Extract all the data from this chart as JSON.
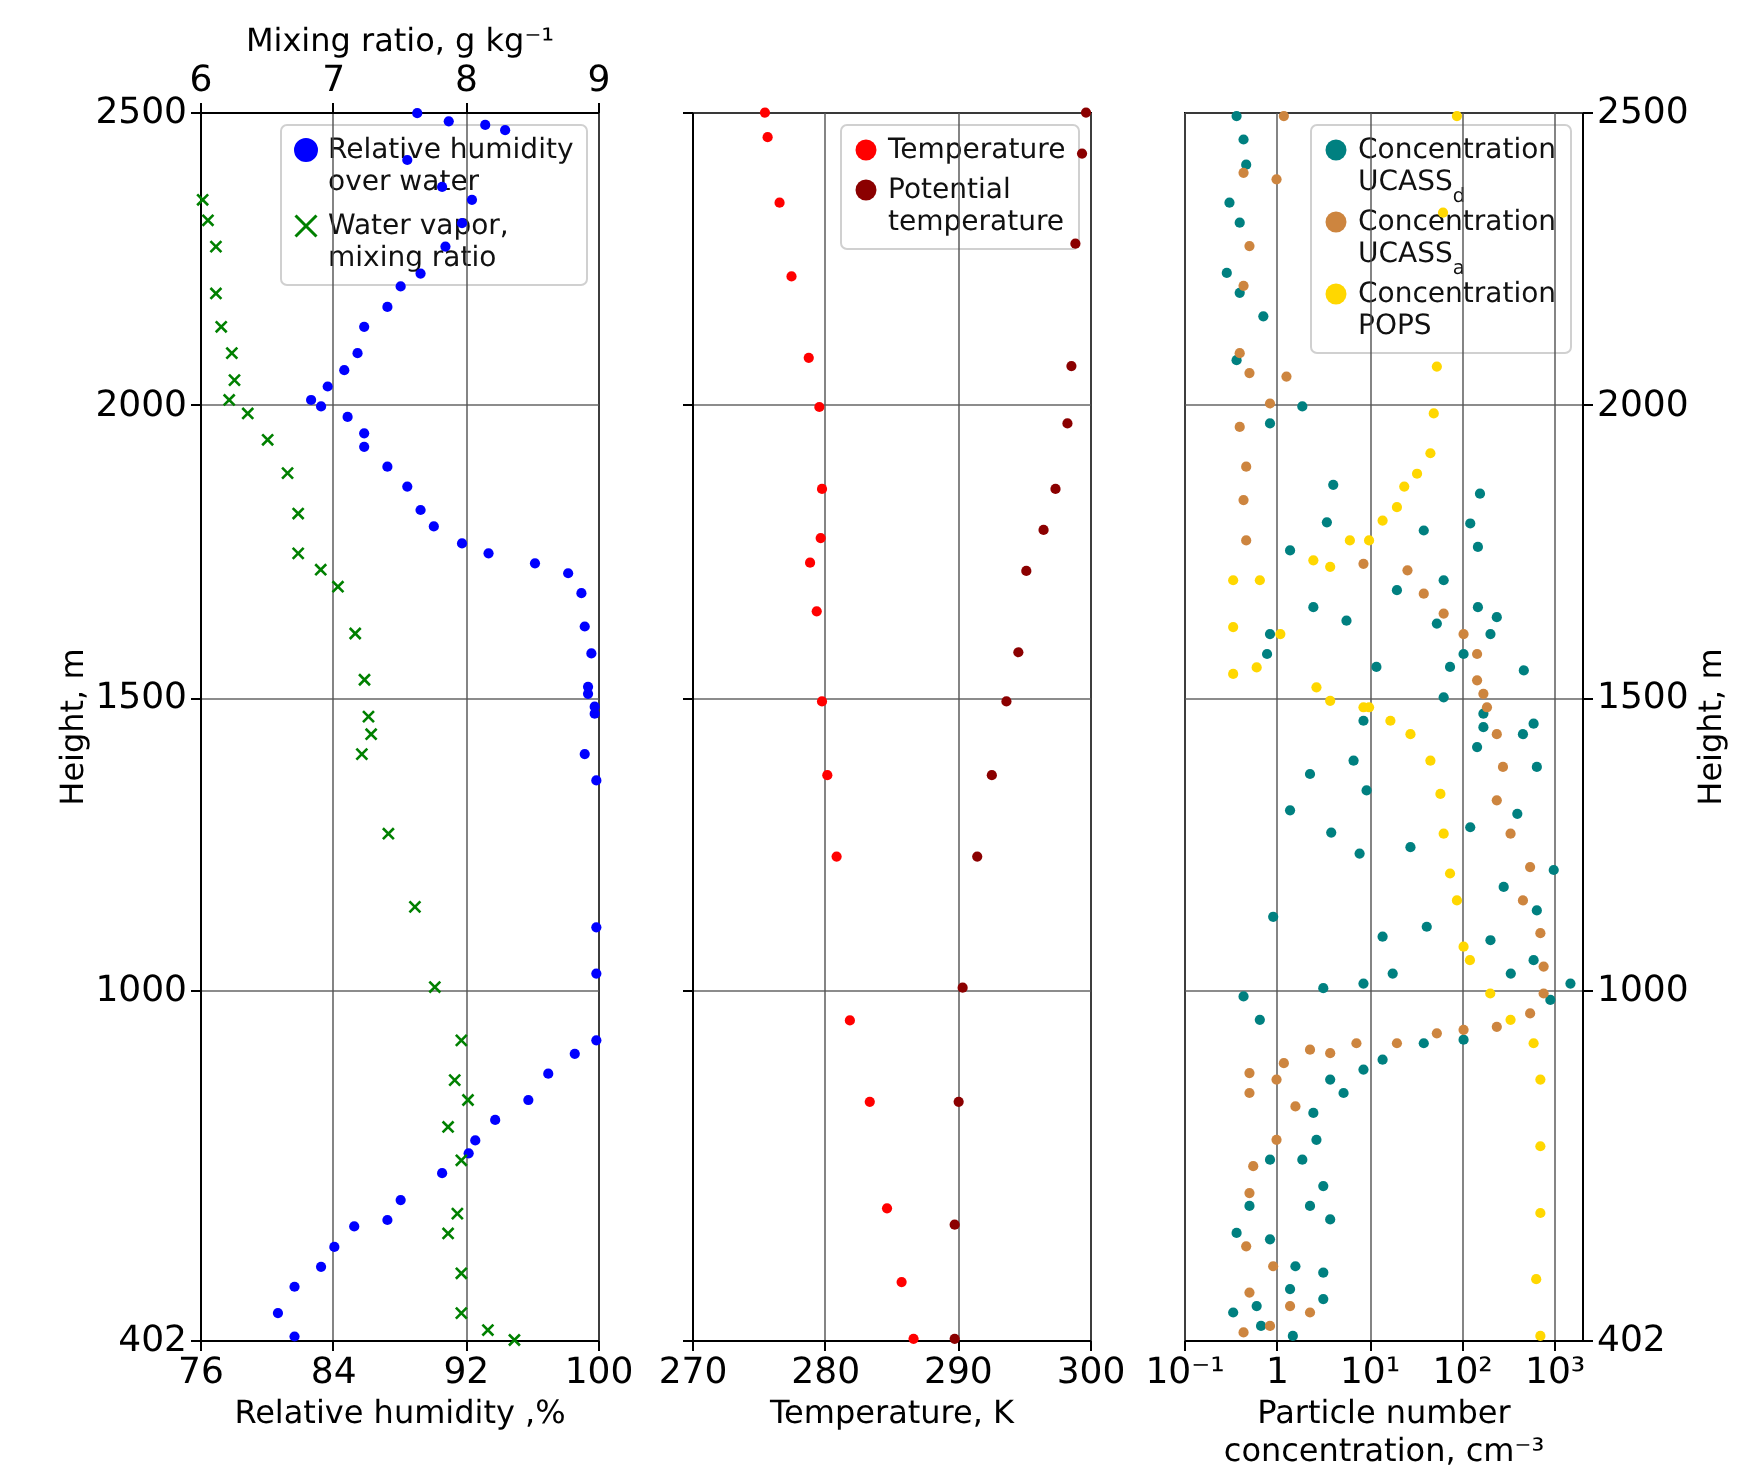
{
  "chart_data": [
    {
      "type": "scatter",
      "xlabel": "Relative humidity ,%",
      "ylabel": "Height, m",
      "x2label": "Mixing ratio, g kg⁻¹",
      "xlim": [
        76,
        100
      ],
      "xticks": [
        76,
        84,
        92,
        100
      ],
      "x2lim": [
        6,
        9
      ],
      "x2ticks": [
        6,
        7,
        8,
        9
      ],
      "ylim": [
        402,
        2500
      ],
      "yticks": [
        402,
        1000,
        1500,
        2000,
        2500
      ],
      "grid": true,
      "legend": "top right",
      "series": [
        {
          "name": "Relative humidity over water",
          "color": "#0000ff",
          "marker": "circle",
          "x": [
            94.4,
            93.2,
            91.0,
            89.1,
            88.5,
            90.6,
            92.4,
            91.8,
            90.8,
            89.3,
            88.1,
            87.3,
            85.9,
            85.5,
            84.7,
            83.7,
            82.7,
            83.3,
            84.9,
            85.9,
            85.9,
            87.3,
            88.5,
            89.3,
            90.1,
            91.8,
            93.4,
            96.2,
            98.2,
            99.0,
            99.2,
            99.6,
            99.4,
            99.8,
            99.4,
            99.8,
            99.2,
            99.9,
            99.9,
            99.9,
            99.9,
            98.6,
            97.0,
            95.8,
            93.8,
            92.6,
            92.2,
            90.6,
            88.1,
            87.3,
            85.3,
            84.1,
            83.3,
            81.7,
            80.7,
            81.7
          ],
          "values": [
            2469,
            2478,
            2484,
            2498,
            2418,
            2372,
            2350,
            2310,
            2270,
            2224,
            2202,
            2167,
            2133,
            2088,
            2059,
            2031,
            2008,
            1997,
            1979,
            1951,
            1928,
            1894,
            1860,
            1820,
            1792,
            1763,
            1746,
            1729,
            1712,
            1678,
            1621,
            1575,
            1518,
            1484,
            1506,
            1472,
            1403,
            1358,
            1107,
            1028,
            914,
            891,
            857,
            812,
            778,
            743,
            721,
            687,
            641,
            607,
            596,
            561,
            527,
            493,
            448,
            408
          ]
        },
        {
          "name": "Water vapor, mixing ratio",
          "color": "#008000",
          "marker": "cross",
          "axis": "x2",
          "x": [
            6.02,
            6.06,
            6.12,
            6.12,
            6.16,
            6.24,
            6.26,
            6.22,
            6.36,
            6.51,
            6.66,
            6.74,
            6.74,
            6.91,
            7.04,
            7.17,
            7.24,
            7.27,
            7.29,
            7.22,
            7.42,
            7.62,
            7.77,
            7.97,
            7.92,
            8.02,
            7.87,
            7.97,
            7.94,
            7.87,
            7.97,
            7.97,
            8.17,
            8.37
          ],
          "values": [
            2350,
            2315,
            2270,
            2190,
            2133,
            2088,
            2042,
            2008,
            1985,
            1940,
            1883,
            1814,
            1746,
            1718,
            1689,
            1609,
            1530,
            1467,
            1437,
            1403,
            1267,
            1142,
            1005,
            914,
            846,
            812,
            766,
            709,
            618,
            584,
            516,
            448,
            419,
            402
          ]
        }
      ]
    },
    {
      "type": "scatter",
      "xlabel": "Temperature, K",
      "marker": "circle",
      "xlim": [
        270,
        300
      ],
      "xticks": [
        270,
        280,
        290,
        300
      ],
      "ylim": [
        402,
        2500
      ],
      "yticks": [
        402,
        1000,
        1500,
        2000,
        2500
      ],
      "tick_labels": "x",
      "grid": true,
      "legend": "top right",
      "series": [
        {
          "name": "Temperature",
          "color": "#ff0000",
          "x": [
            275.5,
            275.7,
            276.6,
            277.5,
            278.8,
            279.6,
            279.8,
            279.7,
            278.9,
            279.4,
            279.8,
            280.2,
            280.9,
            281.9,
            283.4,
            284.7,
            285.8,
            286.7
          ],
          "values": [
            2499,
            2457,
            2345,
            2219,
            2080,
            1996,
            1856,
            1772,
            1730,
            1647,
            1493,
            1367,
            1228,
            948,
            809,
            627,
            501,
            404
          ]
        },
        {
          "name": "Potential temperature",
          "color": "#8b0000",
          "x": [
            299.7,
            299.4,
            298.9,
            298.6,
            298.3,
            297.4,
            296.5,
            295.2,
            294.6,
            293.7,
            292.6,
            291.5,
            290.4,
            290.1,
            289.8,
            289.8
          ],
          "values": [
            2499,
            2429,
            2275,
            2066,
            1968,
            1856,
            1786,
            1716,
            1577,
            1493,
            1367,
            1228,
            1004,
            809,
            599,
            404
          ]
        }
      ]
    },
    {
      "type": "scatter",
      "xlabel": "Particle number concentration, cm⁻³",
      "ylabel": "Height, m",
      "marker": "circle",
      "log": "x",
      "xlim": [
        0.1,
        2000
      ],
      "xticks": [
        {
          "value": 0.1,
          "label": "10⁻¹"
        },
        1,
        {
          "value": 10,
          "label": "10¹"
        },
        {
          "value": 100,
          "label": "10²"
        },
        {
          "value": 1000,
          "label": "10³"
        }
      ],
      "ylim": [
        402,
        2500
      ],
      "yticks": [
        402,
        1000,
        1500,
        2000,
        2500
      ],
      "grid": true,
      "legend": "top right",
      "series": [
        {
          "name": "Concentration UCASS$_{d}$",
          "color": "#008080",
          "x": [
            0.37,
            0.44,
            0.47,
            0.31,
            0.4,
            0.29,
            0.4,
            0.72,
            0.37,
            0.85,
            1.9,
            4.1,
            3.5,
            1.4,
            2.5,
            5.7,
            0.85,
            0.79,
            158,
            124,
            39,
            150,
            20,
            64,
            54,
            150,
            240,
            470,
            75,
            205,
            105,
            64,
            12,
            8.7,
            172,
            600,
            172,
            460,
            147,
            650,
            6.8,
            2.3,
            9.4,
            1.4,
            3.9,
            7.9,
            28,
            124,
            400,
            990,
            285,
            650,
            0.92,
            14,
            42,
            205,
            600,
            3.2,
            8.7,
            18,
            1500,
            340,
            910,
            0.44,
            0.66,
            105,
            39,
            14,
            8.7,
            5.3,
            3.8,
            2.5,
            2.7,
            1.9,
            3.2,
            0.85,
            0.51,
            2.3,
            3.8,
            0.37,
            0.85,
            1.6,
            3.2,
            1.4,
            0.61,
            3.2,
            0.34,
            0.68,
            1.5
          ],
          "values": [
            2493,
            2453,
            2410,
            2345,
            2311,
            2225,
            2191,
            2151,
            2076,
            1968,
            1997,
            1863,
            1799,
            1751,
            1654,
            1631,
            1608,
            1574,
            1848,
            1797,
            1785,
            1757,
            1683,
            1700,
            1626,
            1654,
            1637,
            1546,
            1552,
            1608,
            1574,
            1500,
            1552,
            1460,
            1449,
            1455,
            1472,
            1437,
            1415,
            1381,
            1392,
            1369,
            1341,
            1307,
            1269,
            1233,
            1244,
            1278,
            1301,
            1205,
            1176,
            1136,
            1125,
            1091,
            1108,
            1085,
            1051,
            1003,
            1011,
            1028,
            1011,
            1028,
            983,
            989,
            949,
            915,
            909,
            881,
            864,
            824,
            847,
            790,
            744,
            710,
            665,
            710,
            631,
            631,
            608,
            585,
            574,
            528,
            517,
            489,
            460,
            472,
            449,
            426,
            409
          ]
        },
        {
          "name": "Concentration UCASS$_{a}$",
          "color": "#cd853f",
          "x": [
            1.2,
            1.0,
            0.44,
            0.51,
            0.44,
            0.4,
            0.51,
            0.4,
            0.47,
            0.44,
            0.47,
            1.28,
            0.85,
            8.7,
            26,
            39,
            64,
            105,
            147,
            147,
            188,
            172,
            240,
            280,
            240,
            338,
            550,
            460,
            710,
            770,
            770,
            550,
            240,
            105,
            54,
            20,
            7.3,
            3.8,
            2.3,
            1.2,
            0.51,
            1.0,
            0.51,
            1.6,
            1.0,
            0.56,
            0.51,
            0.47,
            0.92,
            0.51,
            1.4,
            2.3,
            0.85,
            0.44
          ],
          "values": [
            2493,
            2385,
            2396,
            2271,
            2203,
            2088,
            2054,
            1962,
            1894,
            1837,
            1768,
            2048,
            2002,
            1728,
            1717,
            1677,
            1643,
            1608,
            1574,
            1529,
            1483,
            1506,
            1437,
            1381,
            1324,
            1267,
            1210,
            1153,
            1097,
            1040,
            994,
            960,
            937,
            932,
            926,
            909,
            909,
            892,
            898,
            875,
            858,
            847,
            824,
            801,
            744,
            699,
            653,
            562,
            528,
            483,
            460,
            449,
            426,
            415
          ]
        },
        {
          "name": "Concentration POPS",
          "color": "#ffd700",
          "x": [
            89,
            63,
            54,
            50,
            46,
            33,
            24,
            20,
            14,
            10,
            6.2,
            3.8,
            2.5,
            0.34,
            0.34,
            0.34,
            0.66,
            0.61,
            1.1,
            2.7,
            3.8,
            8.7,
            10,
            17,
            28,
            46,
            59,
            64,
            75,
            89,
            105,
            123,
            204,
            338,
            600,
            710,
            710,
            710,
            640,
            710
          ],
          "values": [
            2493,
            2328,
            2065,
            1985,
            1917,
            1882,
            1860,
            1825,
            1802,
            1768,
            1768,
            1723,
            1734,
            1700,
            1620,
            1540,
            1700,
            1551,
            1608,
            1517,
            1494,
            1483,
            1483,
            1460,
            1437,
            1392,
            1335,
            1267,
            1199,
            1153,
            1074,
            1051,
            994,
            949,
            909,
            847,
            733,
            619,
            506,
            409
          ]
        }
      ]
    }
  ]
}
